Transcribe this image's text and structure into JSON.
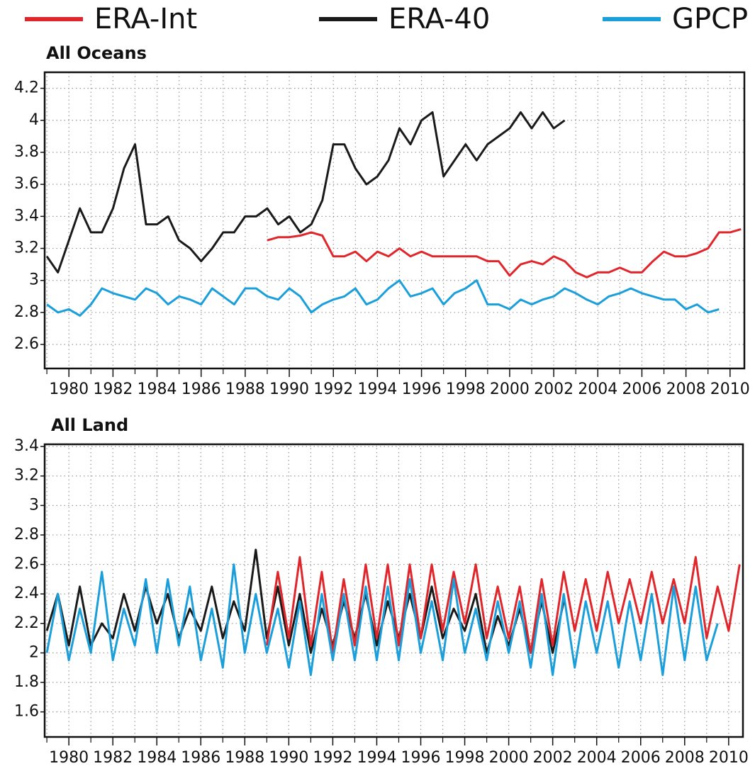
{
  "chart_data": [
    {
      "type": "line",
      "title": "All Oceans",
      "x": [
        1979,
        1979.5,
        1980,
        1980.5,
        1981,
        1981.5,
        1982,
        1982.5,
        1983,
        1983.5,
        1984,
        1984.5,
        1985,
        1985.5,
        1986,
        1986.5,
        1987,
        1987.5,
        1988,
        1988.5,
        1989,
        1989.5,
        1990,
        1990.5,
        1991,
        1991.5,
        1992,
        1992.5,
        1993,
        1993.5,
        1994,
        1994.5,
        1995,
        1995.5,
        1996,
        1996.5,
        1997,
        1997.5,
        1998,
        1998.5,
        1999,
        1999.5,
        2000,
        2000.5,
        2001,
        2001.5,
        2002,
        2002.5,
        2003,
        2003.5,
        2004,
        2004.5,
        2005,
        2005.5,
        2006,
        2006.5,
        2007,
        2007.5,
        2008,
        2008.5,
        2009,
        2009.5,
        2010,
        2010.5
      ],
      "series": [
        {
          "name": "ERA-Int",
          "color": "#e0262b",
          "values": [
            null,
            null,
            null,
            null,
            null,
            null,
            null,
            null,
            null,
            null,
            null,
            null,
            null,
            null,
            null,
            null,
            null,
            null,
            null,
            null,
            3.25,
            3.27,
            3.27,
            3.28,
            3.3,
            3.28,
            3.15,
            3.15,
            3.18,
            3.12,
            3.18,
            3.15,
            3.2,
            3.15,
            3.18,
            3.15,
            3.15,
            3.15,
            3.15,
            3.15,
            3.12,
            3.12,
            3.03,
            3.1,
            3.12,
            3.1,
            3.15,
            3.12,
            3.05,
            3.02,
            3.05,
            3.05,
            3.08,
            3.05,
            3.05,
            3.12,
            3.18,
            3.15,
            3.15,
            3.17,
            3.2,
            3.3,
            3.3,
            3.32
          ]
        },
        {
          "name": "ERA-40",
          "color": "#1a1a1a",
          "values": [
            3.15,
            3.05,
            3.25,
            3.45,
            3.3,
            3.3,
            3.45,
            3.7,
            3.85,
            3.35,
            3.35,
            3.4,
            3.25,
            3.2,
            3.12,
            3.2,
            3.3,
            3.3,
            3.4,
            3.4,
            3.45,
            3.35,
            3.4,
            3.3,
            3.35,
            3.5,
            3.85,
            3.85,
            3.7,
            3.6,
            3.65,
            3.75,
            3.95,
            3.85,
            4.0,
            4.05,
            3.65,
            3.75,
            3.85,
            3.75,
            3.85,
            3.9,
            3.95,
            4.05,
            3.95,
            4.05,
            3.95,
            4.0,
            null,
            null,
            null,
            null,
            null,
            null,
            null,
            null,
            null,
            null,
            null,
            null,
            null,
            null,
            null,
            null
          ]
        },
        {
          "name": "GPCP",
          "color": "#1a9fdb",
          "values": [
            2.85,
            2.8,
            2.82,
            2.78,
            2.85,
            2.95,
            2.92,
            2.9,
            2.88,
            2.95,
            2.92,
            2.85,
            2.9,
            2.88,
            2.85,
            2.95,
            2.9,
            2.85,
            2.95,
            2.95,
            2.9,
            2.88,
            2.95,
            2.9,
            2.8,
            2.85,
            2.88,
            2.9,
            2.95,
            2.85,
            2.88,
            2.95,
            3.0,
            2.9,
            2.92,
            2.95,
            2.85,
            2.92,
            2.95,
            3.0,
            2.85,
            2.85,
            2.82,
            2.88,
            2.85,
            2.88,
            2.9,
            2.95,
            2.92,
            2.88,
            2.85,
            2.9,
            2.92,
            2.95,
            2.92,
            2.9,
            2.88,
            2.88,
            2.82,
            2.85,
            2.8,
            2.82,
            null,
            null
          ]
        }
      ],
      "xlim": [
        1978.9,
        2010.65
      ],
      "xticks": [
        1980,
        1982,
        1984,
        1986,
        1988,
        1990,
        1992,
        1994,
        1996,
        1998,
        2000,
        2002,
        2004,
        2006,
        2008,
        2010
      ],
      "ylim": [
        2.45,
        4.3
      ],
      "yticks": [
        2.6,
        2.8,
        3,
        3.2,
        3.4,
        3.6,
        3.8,
        4,
        4.2
      ],
      "grid": true
    },
    {
      "type": "line",
      "title": "All Land",
      "x": [
        1979,
        1979.5,
        1980,
        1980.5,
        1981,
        1981.5,
        1982,
        1982.5,
        1983,
        1983.5,
        1984,
        1984.5,
        1985,
        1985.5,
        1986,
        1986.5,
        1987,
        1987.5,
        1988,
        1988.5,
        1989,
        1989.5,
        1990,
        1990.5,
        1991,
        1991.5,
        1992,
        1992.5,
        1993,
        1993.5,
        1994,
        1994.5,
        1995,
        1995.5,
        1996,
        1996.5,
        1997,
        1997.5,
        1998,
        1998.5,
        1999,
        1999.5,
        2000,
        2000.5,
        2001,
        2001.5,
        2002,
        2002.5,
        2003,
        2003.5,
        2004,
        2004.5,
        2005,
        2005.5,
        2006,
        2006.5,
        2007,
        2007.5,
        2008,
        2008.5,
        2009,
        2009.5,
        2010,
        2010.5
      ],
      "series": [
        {
          "name": "ERA-40",
          "color": "#1a1a1a",
          "values": [
            2.15,
            2.4,
            2.05,
            2.45,
            2.05,
            2.2,
            2.1,
            2.4,
            2.15,
            2.45,
            2.2,
            2.4,
            2.1,
            2.3,
            2.15,
            2.45,
            2.1,
            2.35,
            2.15,
            2.7,
            2.1,
            2.45,
            2.05,
            2.4,
            2.0,
            2.3,
            2.05,
            2.35,
            2.1,
            2.4,
            2.05,
            2.35,
            2.1,
            2.4,
            2.1,
            2.45,
            2.1,
            2.3,
            2.15,
            2.4,
            2.0,
            2.25,
            2.05,
            2.3,
            2.0,
            2.35,
            2.0,
            2.35,
            null,
            null,
            null,
            null,
            null,
            null,
            null,
            null,
            null,
            null,
            null,
            null,
            null,
            null,
            null,
            null
          ]
        },
        {
          "name": "ERA-Int",
          "color": "#e0262b",
          "values": [
            null,
            null,
            null,
            null,
            null,
            null,
            null,
            null,
            null,
            null,
            null,
            null,
            null,
            null,
            null,
            null,
            null,
            null,
            null,
            null,
            2.05,
            2.55,
            2.1,
            2.65,
            2.05,
            2.55,
            2.0,
            2.5,
            2.05,
            2.6,
            2.1,
            2.6,
            2.05,
            2.6,
            2.1,
            2.6,
            2.15,
            2.55,
            2.2,
            2.6,
            2.1,
            2.45,
            2.1,
            2.45,
            2.0,
            2.5,
            2.05,
            2.55,
            2.15,
            2.5,
            2.15,
            2.55,
            2.2,
            2.5,
            2.2,
            2.55,
            2.2,
            2.5,
            2.2,
            2.65,
            2.1,
            2.45,
            2.15,
            2.6
          ]
        },
        {
          "name": "GPCP",
          "color": "#1a9fdb",
          "values": [
            2.0,
            2.4,
            1.95,
            2.3,
            2.0,
            2.55,
            1.95,
            2.3,
            2.05,
            2.5,
            2.0,
            2.5,
            2.05,
            2.45,
            1.95,
            2.3,
            1.9,
            2.6,
            2.0,
            2.4,
            2.0,
            2.3,
            1.9,
            2.35,
            1.85,
            2.4,
            1.95,
            2.4,
            1.95,
            2.45,
            1.95,
            2.45,
            1.95,
            2.5,
            2.0,
            2.35,
            1.95,
            2.5,
            2.0,
            2.3,
            1.95,
            2.35,
            2.0,
            2.35,
            1.9,
            2.4,
            1.85,
            2.4,
            1.9,
            2.35,
            2.0,
            2.35,
            1.9,
            2.35,
            1.95,
            2.4,
            1.85,
            2.45,
            1.95,
            2.45,
            1.95,
            2.2,
            null,
            null
          ]
        }
      ],
      "xlim": [
        1978.9,
        2010.65
      ],
      "xticks": [
        1980,
        1982,
        1984,
        1986,
        1988,
        1990,
        1992,
        1994,
        1996,
        1998,
        2000,
        2002,
        2004,
        2006,
        2008,
        2010
      ],
      "ylim": [
        1.43,
        3.415
      ],
      "yticks": [
        1.6,
        1.8,
        2,
        2.2,
        2.4,
        2.6,
        2.8,
        3,
        3.2,
        3.4
      ],
      "grid": true
    }
  ]
}
